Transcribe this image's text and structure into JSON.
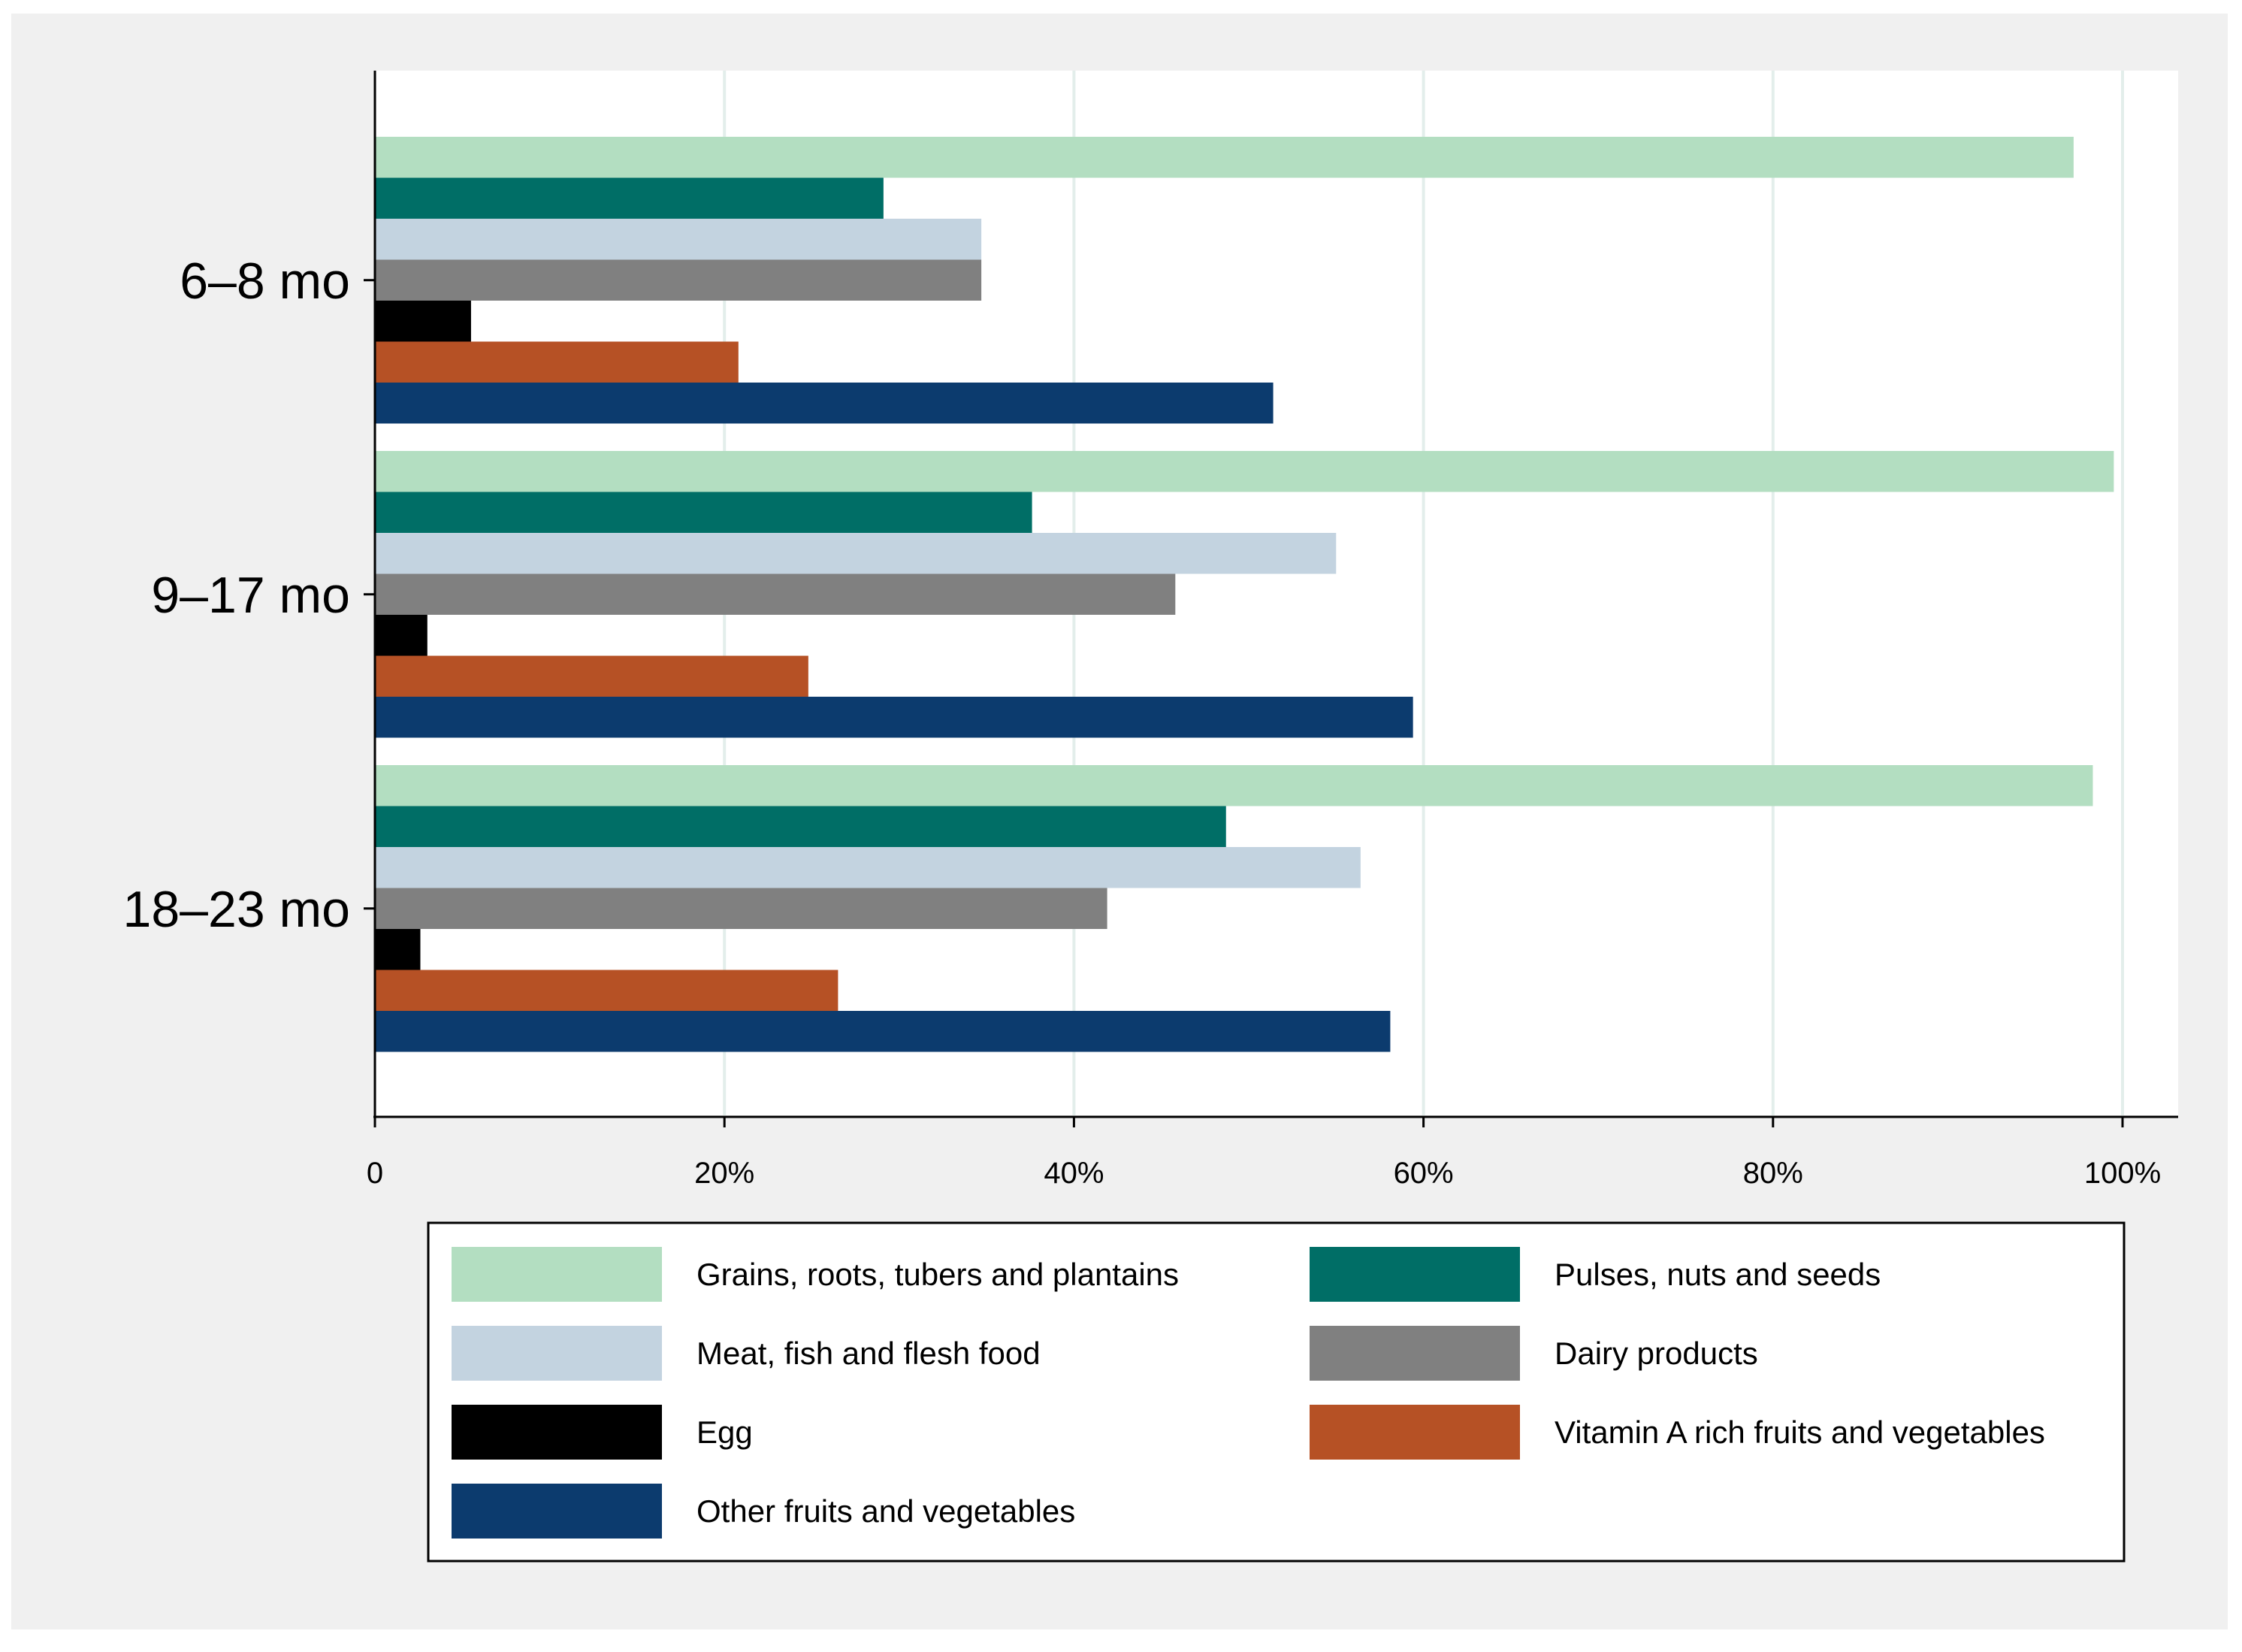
{
  "chart_data": {
    "type": "bar",
    "orientation": "horizontal",
    "title": "",
    "xlabel": "",
    "ylabel": "",
    "categories": [
      "6–8 mo",
      "9–17 mo",
      "18–23 mo"
    ],
    "x_ticks": [
      {
        "value": 0,
        "label": "0"
      },
      {
        "value": 20,
        "label": "20%"
      },
      {
        "value": 40,
        "label": "40%"
      },
      {
        "value": 60,
        "label": "60%"
      },
      {
        "value": 80,
        "label": "80%"
      },
      {
        "value": 100,
        "label": "100%"
      }
    ],
    "xlim": [
      0,
      103
    ],
    "grid": true,
    "legend_position": "bottom",
    "series": [
      {
        "name": "Grains, roots, tubers and plantains",
        "color": "#b3dec1",
        "values": [
          97.2,
          99.5,
          98.3
        ]
      },
      {
        "name": "Pulses, nuts and seeds",
        "color": "#006e66",
        "values": [
          29.1,
          37.6,
          48.7
        ]
      },
      {
        "name": "Meat, fish and flesh food",
        "color": "#c3d3e0",
        "values": [
          34.7,
          55.0,
          56.4
        ]
      },
      {
        "name": "Dairy products",
        "color": "#808080",
        "values": [
          34.7,
          45.8,
          41.9
        ]
      },
      {
        "name": "Egg",
        "color": "#000000",
        "values": [
          5.5,
          3.0,
          2.6
        ]
      },
      {
        "name": "Vitamin A rich fruits and vegetables",
        "color": "#b65125",
        "values": [
          20.8,
          24.8,
          26.5
        ]
      },
      {
        "name": "Other fruits and vegetables",
        "color": "#0c3b6e",
        "values": [
          51.4,
          59.4,
          58.1
        ]
      }
    ]
  }
}
